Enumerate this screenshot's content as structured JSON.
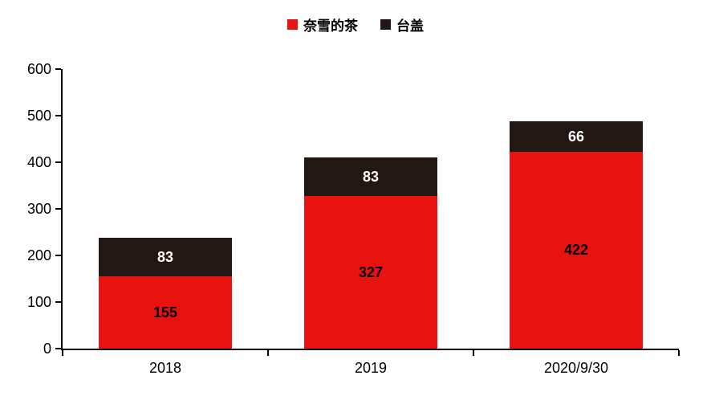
{
  "chart_data": {
    "type": "bar",
    "stacked": true,
    "title": "",
    "xlabel": "",
    "ylabel": "",
    "categories": [
      "2018",
      "2019",
      "2020/9/30"
    ],
    "series": [
      {
        "name": "奈雪的茶",
        "color": "#e8120f",
        "label_color": "#000000",
        "values": [
          155,
          327,
          422
        ]
      },
      {
        "name": "台盖",
        "color": "#231713",
        "label_color": "#ffffff",
        "values": [
          83,
          83,
          66
        ]
      }
    ],
    "ylim": [
      0,
      600
    ],
    "ytick_step": 100,
    "ytick_labels": [
      "0",
      "100",
      "200",
      "300",
      "400",
      "500",
      "600"
    ],
    "legend_position": "top",
    "grid": false,
    "axis_color": "#000000",
    "background_color": "#ffffff"
  }
}
